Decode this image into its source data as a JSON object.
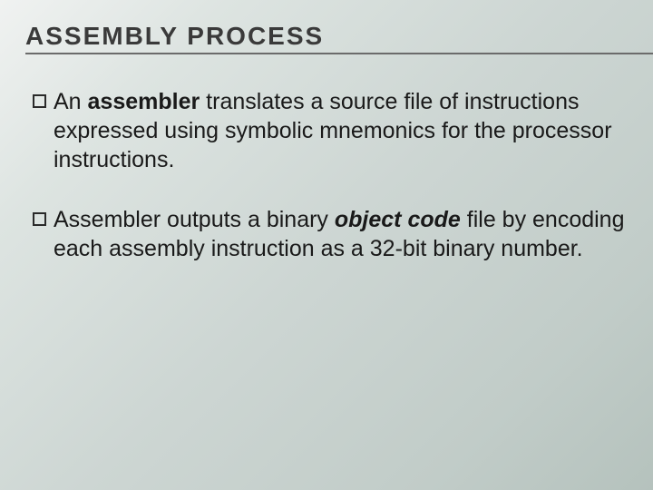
{
  "slide": {
    "title": "ASSEMBLY PROCESS",
    "title_fontsize": 28,
    "title_color": "#3a3a3a",
    "title_letter_spacing": 2,
    "underline_color": "#6b6b6b",
    "body_fontsize": 25,
    "body_color": "#1a1a1a",
    "body_line_height": 1.28,
    "bullet_marker": {
      "type": "hollow-square",
      "size": 15,
      "border_color": "#2a2a2a",
      "border_width": 2
    },
    "background_gradient": [
      "#f0f2f1",
      "#dde4e1",
      "#cdd6d3",
      "#c1ccc8",
      "#b5c2bd"
    ],
    "bullets": [
      {
        "segments": [
          {
            "text": "An ",
            "bold": false,
            "italic": false
          },
          {
            "text": "assembler",
            "bold": true,
            "italic": false
          },
          {
            "text": " translates a source file of instructions expressed using symbolic mnemonics for the processor instructions.",
            "bold": false,
            "italic": false
          }
        ]
      },
      {
        "segments": [
          {
            "text": "Assembler outputs a binary ",
            "bold": false,
            "italic": false
          },
          {
            "text": "object code",
            "bold": true,
            "italic": true
          },
          {
            "text": " file by encoding each assembly instruction as a 32-bit binary number.",
            "bold": false,
            "italic": false
          }
        ]
      }
    ]
  }
}
